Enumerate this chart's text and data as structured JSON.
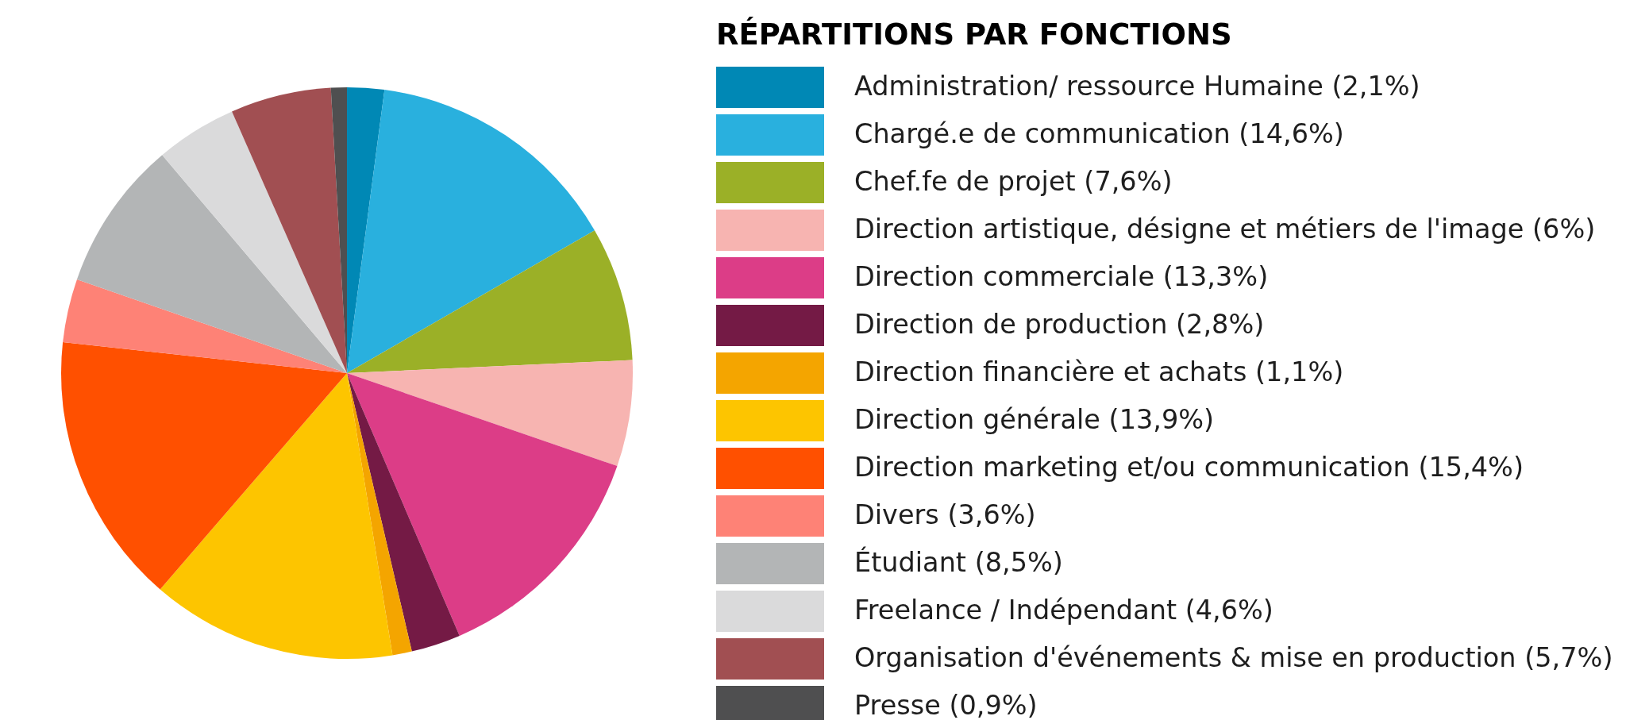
{
  "chart_data": {
    "type": "pie",
    "legend_title": "RÉPARTITIONS PAR FONCTIONS",
    "categories": [
      "Administration/ ressource Humaine (2,1%)",
      "Chargé.e de communication (14,6%)",
      "Chef.fe de projet (7,6%)",
      "Direction artistique, désigne et métiers de l'image (6%)",
      "Direction commerciale (13,3%)",
      "Direction de production (2,8%)",
      "Direction financière et achats (1,1%)",
      "Direction générale (13,9%)",
      "Direction marketing et/ou communication (15,4%)",
      "Divers (3,6%)",
      "Étudiant (8,5%)",
      "Freelance / Indépendant (4,6%)",
      "Organisation d'événements & mise en production (5,7%)",
      "Presse (0,9%)"
    ],
    "values": [
      2.1,
      14.6,
      7.6,
      6,
      13.3,
      2.8,
      1.1,
      13.9,
      15.4,
      3.6,
      8.5,
      4.6,
      5.7,
      0.9
    ],
    "colors": [
      "#0088b5",
      "#29b0de",
      "#9bb027",
      "#f7b4b1",
      "#dc3d87",
      "#741a45",
      "#f4a500",
      "#fdc500",
      "#ff5000",
      "#fe8276",
      "#b3b5b6",
      "#dadadb",
      "#a14f52",
      "#4f4f50"
    ],
    "legend": "right"
  }
}
